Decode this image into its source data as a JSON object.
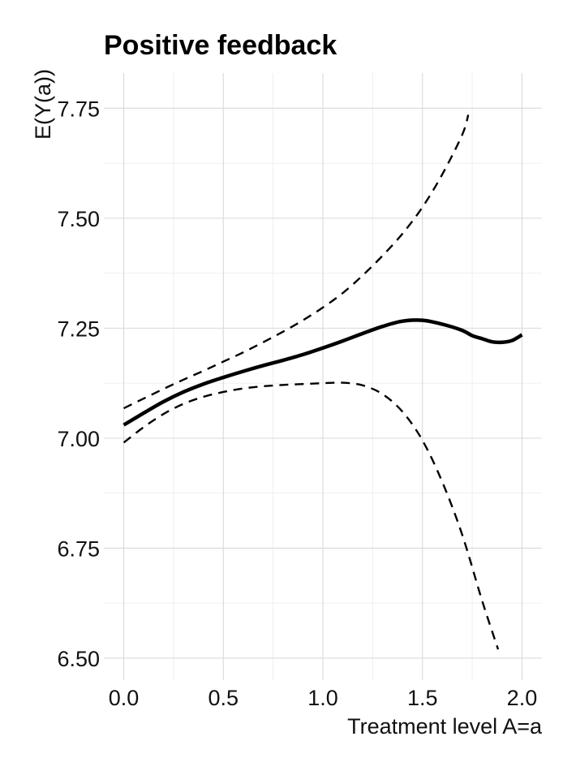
{
  "chart_data": {
    "type": "line",
    "title": "Positive feedback",
    "xlabel": "Treatment level A=a",
    "ylabel": "E(Y(a))",
    "xlim": [
      -0.1,
      2.1
    ],
    "ylim": [
      6.45,
      7.83
    ],
    "x_ticks": [
      0.0,
      0.5,
      1.0,
      1.5,
      2.0
    ],
    "x_tick_labels": [
      "0.0",
      "0.5",
      "1.0",
      "1.5",
      "2.0"
    ],
    "y_ticks": [
      6.5,
      6.75,
      7.0,
      7.25,
      7.5,
      7.75
    ],
    "y_tick_labels": [
      "6.50",
      "6.75",
      "7.00",
      "7.25",
      "7.50",
      "7.75"
    ],
    "grid": true,
    "legend": "none",
    "series": [
      {
        "role": "estimate",
        "style": "solid",
        "x": [
          0.0,
          0.1,
          0.2,
          0.3,
          0.4,
          0.5,
          0.6,
          0.7,
          0.8,
          0.9,
          1.0,
          1.1,
          1.2,
          1.3,
          1.4,
          1.5,
          1.6,
          1.7,
          1.75,
          1.8,
          1.85,
          1.9,
          1.95,
          2.0
        ],
        "y": [
          7.03,
          7.057,
          7.083,
          7.105,
          7.123,
          7.138,
          7.152,
          7.165,
          7.177,
          7.19,
          7.205,
          7.221,
          7.238,
          7.254,
          7.266,
          7.268,
          7.259,
          7.245,
          7.233,
          7.226,
          7.219,
          7.218,
          7.222,
          7.235
        ]
      },
      {
        "role": "upper-bound",
        "style": "dashed",
        "x": [
          0.0,
          0.1,
          0.2,
          0.3,
          0.4,
          0.5,
          0.6,
          0.7,
          0.8,
          0.9,
          1.0,
          1.1,
          1.2,
          1.3,
          1.4,
          1.5,
          1.6,
          1.7,
          1.73
        ],
        "y": [
          7.068,
          7.09,
          7.112,
          7.133,
          7.153,
          7.174,
          7.195,
          7.218,
          7.242,
          7.268,
          7.297,
          7.33,
          7.37,
          7.415,
          7.465,
          7.525,
          7.6,
          7.69,
          7.735
        ]
      },
      {
        "role": "lower-bound",
        "style": "dashed",
        "x": [
          0.0,
          0.1,
          0.2,
          0.3,
          0.4,
          0.5,
          0.6,
          0.7,
          0.8,
          0.9,
          1.0,
          1.1,
          1.2,
          1.3,
          1.4,
          1.5,
          1.6,
          1.7,
          1.8,
          1.88
        ],
        "y": [
          6.99,
          7.025,
          7.055,
          7.078,
          7.094,
          7.105,
          7.113,
          7.118,
          7.121,
          7.123,
          7.125,
          7.126,
          7.12,
          7.1,
          7.06,
          6.995,
          6.9,
          6.78,
          6.63,
          6.52
        ]
      }
    ]
  }
}
